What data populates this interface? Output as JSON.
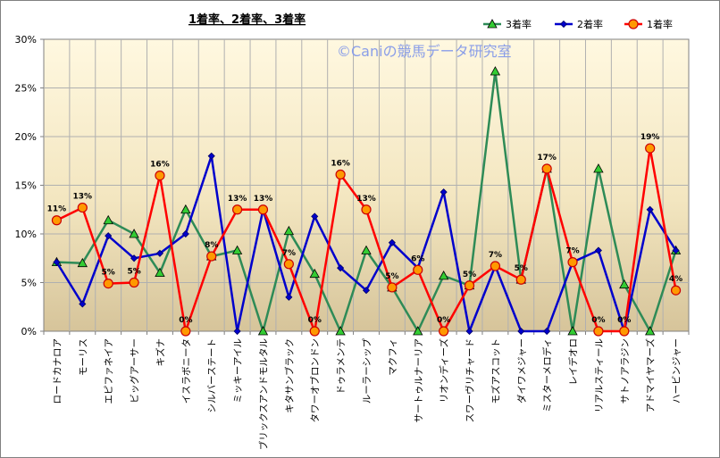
{
  "chart_data": {
    "type": "line",
    "title": "1着率、2着率、3着率",
    "watermark": "©Caniの競馬データ研究室",
    "ylim": [
      0,
      30
    ],
    "yticks": [
      "0%",
      "5%",
      "10%",
      "15%",
      "20%",
      "25%",
      "30%"
    ],
    "grid": true,
    "legend_position": "top-right",
    "categories": [
      "ロードカナロア",
      "モーリス",
      "エピファネイア",
      "ビッグアーサー",
      "キズナ",
      "イスラボニータ",
      "シルバーステート",
      "ミッキーアイル",
      "ブリックスアンドモルタル",
      "キタサンブラック",
      "タワーオブロンドン",
      "ドゥラメンテ",
      "ルーラーシップ",
      "マクフィ",
      "サートゥルナーリア",
      "リオンディーズ",
      "スワーヴリチャード",
      "モズアスコット",
      "ダイワメジャー",
      "ミスターメロディ",
      "レイデオロ",
      "リアルスティール",
      "サトノアラジン",
      "アドマイヤマーズ",
      "ハービンジャー"
    ],
    "series": [
      {
        "name": "3着率",
        "color": "#2e8b57",
        "marker": "triangle",
        "values": [
          7.1,
          7.0,
          11.4,
          10.0,
          6.0,
          12.5,
          7.7,
          8.3,
          0,
          10.3,
          5.9,
          0,
          8.3,
          4.5,
          0,
          5.7,
          4.7,
          26.7,
          5.3,
          16.7,
          0,
          16.7,
          4.8,
          0,
          8.3
        ]
      },
      {
        "name": "2着率",
        "color": "#0000cc",
        "marker": "diamond",
        "values": [
          7.1,
          2.8,
          9.8,
          7.5,
          8.0,
          10.0,
          18.0,
          0,
          12.5,
          3.5,
          11.8,
          6.5,
          4.2,
          9.1,
          6.5,
          14.3,
          0,
          6.7,
          0,
          0,
          7.1,
          8.3,
          0,
          12.5,
          8.3
        ]
      },
      {
        "name": "1着率",
        "color": "#ff0000",
        "marker": "circle",
        "values": [
          11.4,
          12.7,
          4.9,
          5.0,
          16.0,
          0,
          7.7,
          12.5,
          12.5,
          6.9,
          0,
          16.1,
          12.5,
          4.5,
          6.3,
          0,
          4.7,
          6.7,
          5.3,
          16.7,
          7.1,
          0,
          0,
          18.8,
          4.2
        ],
        "labels": [
          "11%",
          "13%",
          "5%",
          "5%",
          "16%",
          "0%",
          "8%",
          "13%",
          "13%",
          "7%",
          "0%",
          "16%",
          "13%",
          "5%",
          "6%",
          "0%",
          "5%",
          "7%",
          "5%",
          "17%",
          "7%",
          "0%",
          "0%",
          "19%",
          "4%"
        ]
      }
    ]
  }
}
